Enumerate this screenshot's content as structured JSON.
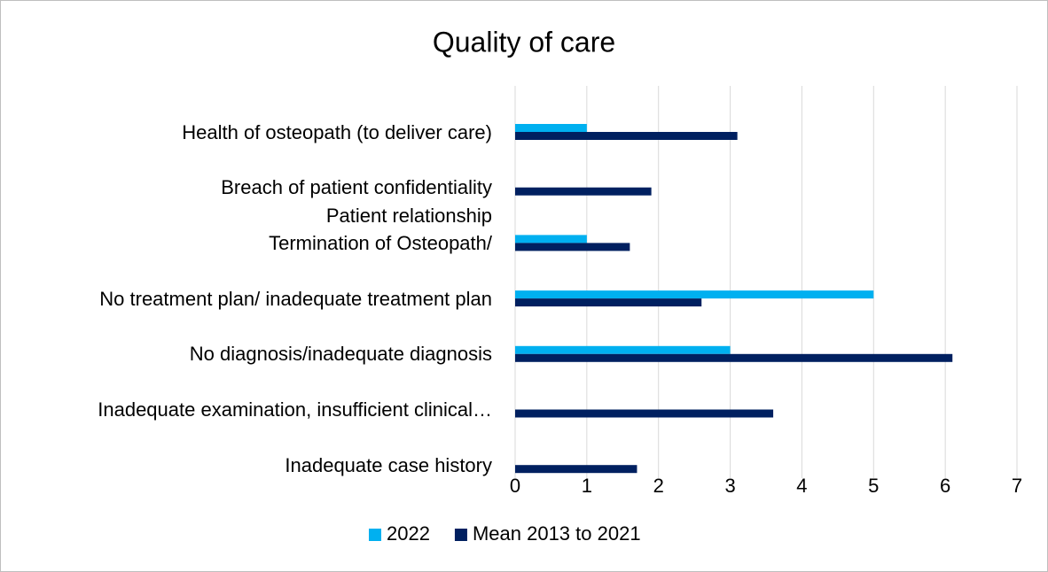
{
  "chart_data": {
    "type": "barh",
    "title": "Quality of care",
    "categories": [
      "Health of osteopath (to deliver care)",
      "Breach of patient confidentiality",
      "Patient relationship\nTermination of Osteopath/",
      "No treatment plan/ inadequate treatment plan",
      "No diagnosis/inadequate diagnosis",
      "Inadequate examination, insufficient clinical…",
      "Inadequate case history"
    ],
    "series": [
      {
        "name": "2022",
        "color": "#00b0f0",
        "values": [
          1,
          null,
          1,
          5,
          3,
          null,
          null
        ]
      },
      {
        "name": "Mean 2013 to 2021",
        "color": "#002060",
        "values": [
          3.1,
          1.9,
          1.6,
          2.6,
          6.1,
          3.6,
          1.7
        ]
      }
    ],
    "xlim": [
      0,
      7
    ],
    "xticks": [
      0,
      1,
      2,
      3,
      4,
      5,
      6,
      7
    ],
    "grid": true,
    "legend": "bottom"
  }
}
